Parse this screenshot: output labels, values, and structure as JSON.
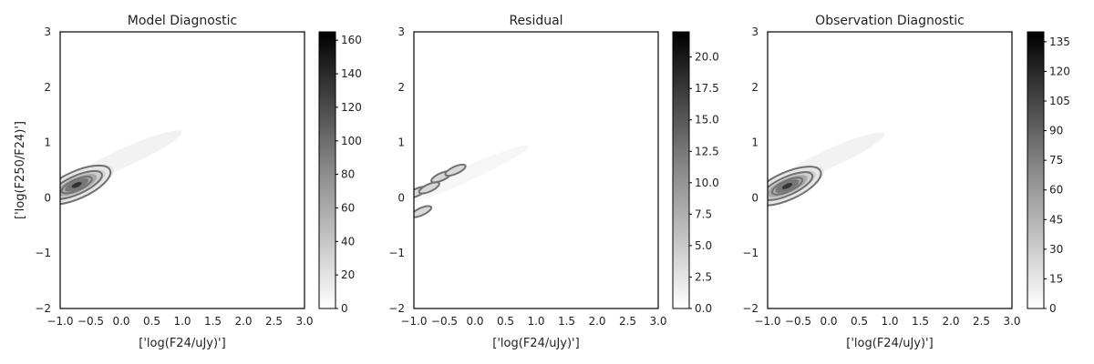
{
  "chart_data": [
    {
      "type": "heatmap",
      "title": "Model Diagnostic",
      "xlabel": "['log(F24/uJy)']",
      "ylabel": "['log(F250/F24)']",
      "xlim": [
        -1.0,
        3.0
      ],
      "ylim": [
        -2,
        3
      ],
      "x_ticks": [
        "−1.0",
        "−0.5",
        "0.0",
        "0.5",
        "1.0",
        "1.5",
        "2.0",
        "2.5",
        "3.0"
      ],
      "y_ticks": [
        "−2",
        "−1",
        "0",
        "1",
        "2",
        "3"
      ],
      "colorbar": {
        "min": 0,
        "max": 165,
        "ticks": [
          "0",
          "20",
          "40",
          "60",
          "80",
          "100",
          "120",
          "140",
          "160"
        ],
        "tick_values": [
          0,
          20,
          40,
          60,
          80,
          100,
          120,
          140,
          160
        ]
      },
      "contour_color": "#707070",
      "density": {
        "center": [
          -0.55,
          0.38
        ],
        "spread_along": 0.45,
        "spread_across": 0.12,
        "tail_to": [
          0.7,
          1.1
        ]
      }
    },
    {
      "type": "heatmap",
      "title": "Residual",
      "xlabel": "['log(F24/uJy)']",
      "ylabel": "",
      "xlim": [
        -1.0,
        3.0
      ],
      "ylim": [
        -2,
        3
      ],
      "x_ticks": [
        "−1.0",
        "−0.5",
        "0.0",
        "0.5",
        "1.0",
        "1.5",
        "2.0",
        "2.5",
        "3.0"
      ],
      "y_ticks": [
        "−2",
        "−1",
        "0",
        "1",
        "2",
        "3"
      ],
      "colorbar": {
        "min": 0,
        "max": 22,
        "ticks": [
          "0.0",
          "2.5",
          "5.0",
          "7.5",
          "10.0",
          "12.5",
          "15.0",
          "17.5",
          "20.0"
        ],
        "tick_values": [
          0,
          2.5,
          5,
          7.5,
          10,
          12.5,
          15,
          17.5,
          20
        ]
      },
      "contour_color": "#707070",
      "blobs": [
        {
          "x": -0.95,
          "y": 0.1
        },
        {
          "x": -0.88,
          "y": -0.25
        },
        {
          "x": -0.55,
          "y": 0.38
        },
        {
          "x": -0.32,
          "y": 0.5
        },
        {
          "x": -0.75,
          "y": 0.18
        }
      ]
    },
    {
      "type": "heatmap",
      "title": "Observation Diagnostic",
      "xlabel": "['log(F24/uJy)']",
      "ylabel": "",
      "xlim": [
        -1.0,
        3.0
      ],
      "ylim": [
        -2,
        3
      ],
      "x_ticks": [
        "−1.0",
        "−0.5",
        "0.0",
        "0.5",
        "1.0",
        "1.5",
        "2.0",
        "2.5",
        "3.0"
      ],
      "y_ticks": [
        "−2",
        "−1",
        "0",
        "1",
        "2",
        "3"
      ],
      "colorbar": {
        "min": 0,
        "max": 140,
        "ticks": [
          "0",
          "15",
          "30",
          "45",
          "60",
          "75",
          "90",
          "105",
          "120",
          "135"
        ],
        "tick_values": [
          0,
          15,
          30,
          45,
          60,
          75,
          90,
          105,
          120,
          135
        ]
      },
      "contour_color": "#707070",
      "density": {
        "center": [
          -0.5,
          0.36
        ],
        "spread_along": 0.45,
        "spread_across": 0.12,
        "tail_to": [
          0.6,
          1.1
        ]
      }
    }
  ]
}
